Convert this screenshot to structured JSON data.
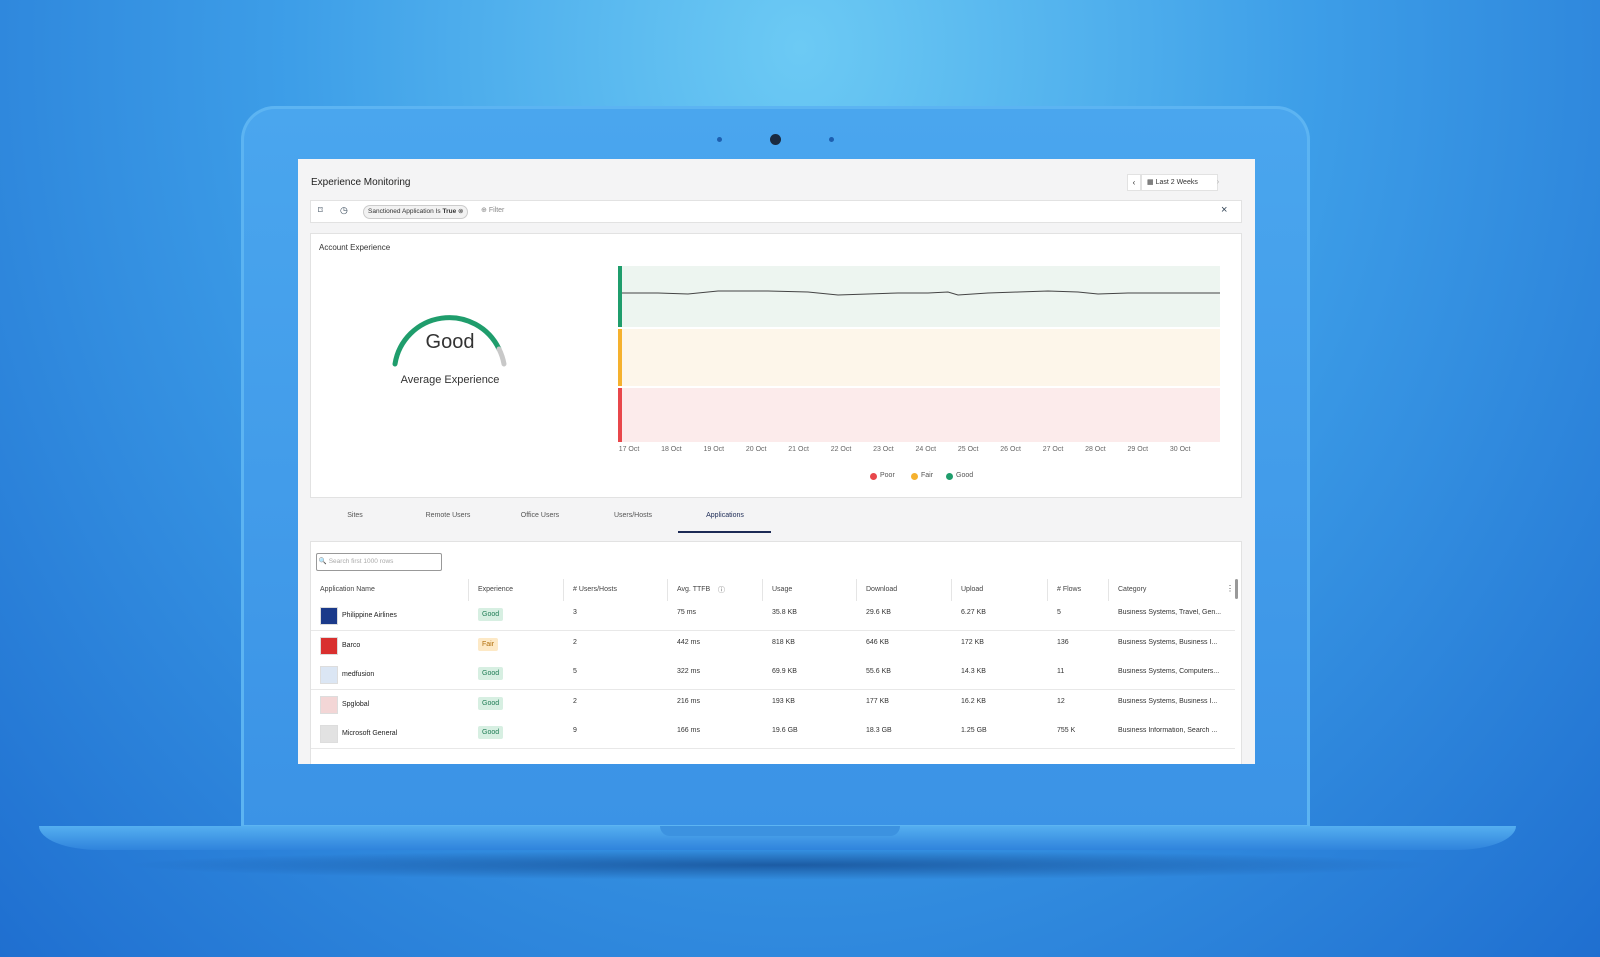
{
  "header": {
    "title": "Experience Monitoring",
    "range": "Last 2 Weeks"
  },
  "filter": {
    "chip_label": "Sanctioned Application Is",
    "chip_value": "True",
    "placeholder": "Filter"
  },
  "account": {
    "title": "Account Experience",
    "gauge_label": "Good",
    "gauge_caption": "Average Experience",
    "dates": [
      "17 Oct",
      "18 Oct",
      "19 Oct",
      "20 Oct",
      "21 Oct",
      "22 Oct",
      "23 Oct",
      "24 Oct",
      "25 Oct",
      "26 Oct",
      "27 Oct",
      "28 Oct",
      "29 Oct",
      "30 Oct"
    ],
    "legend": [
      "Poor",
      "Fair",
      "Good"
    ]
  },
  "tabs": [
    "Sites",
    "Remote Users",
    "Office Users",
    "Users/Hosts",
    "Applications"
  ],
  "search_placeholder": "Search first 1000 rows",
  "table": {
    "columns": [
      "Application Name",
      "Experience",
      "# Users/Hosts",
      "Avg. TTFB",
      "Usage",
      "Download",
      "Upload",
      "# Flows",
      "Category"
    ],
    "rows": [
      [
        "Philippine Airlines",
        "Good",
        "3",
        "75 ms",
        "35.8 KB",
        "29.6 KB",
        "6.27 KB",
        "5",
        "Business Systems, Travel, Gen..."
      ],
      [
        "Barco",
        "Fair",
        "2",
        "442 ms",
        "818 KB",
        "646 KB",
        "172 KB",
        "136",
        "Business Systems, Business I..."
      ],
      [
        "medfusion",
        "Good",
        "5",
        "322 ms",
        "69.9 KB",
        "55.6 KB",
        "14.3 KB",
        "11",
        "Business Systems, Computers..."
      ],
      [
        "Spglobal",
        "Good",
        "2",
        "216 ms",
        "193 KB",
        "177 KB",
        "16.2 KB",
        "12",
        "Business Systems, Business I..."
      ],
      [
        "Microsoft General",
        "Good",
        "9",
        "166 ms",
        "19.6 GB",
        "18.3 GB",
        "1.25 GB",
        "755 K",
        "Business Information, Search ..."
      ]
    ]
  }
}
